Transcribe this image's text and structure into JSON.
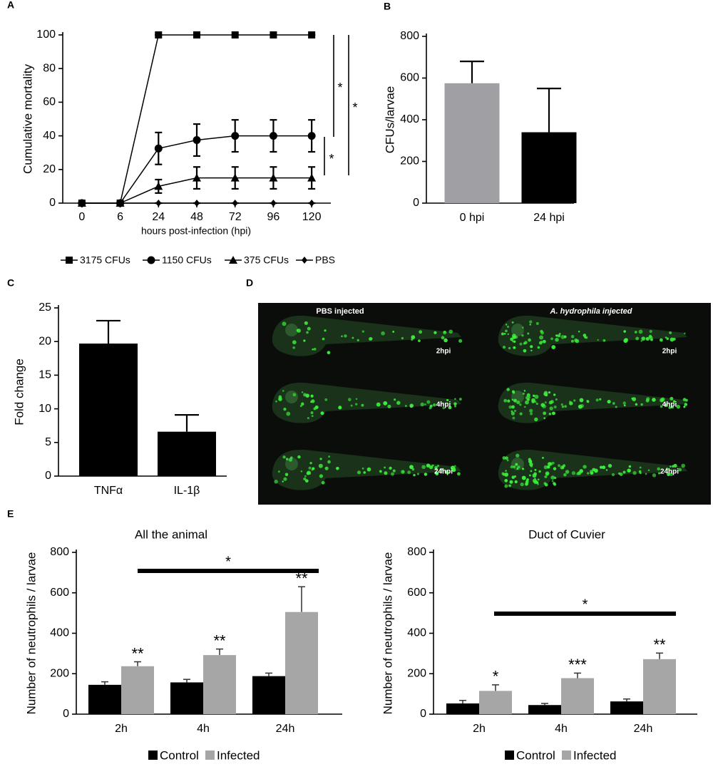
{
  "chart_data": [
    {
      "type": "line",
      "panel_label": "A",
      "x_label": "hours post-infection (hpi)",
      "y_label": "Cumulative mortality",
      "categories": [
        "0",
        "6",
        "24",
        "48",
        "72",
        "96",
        "120"
      ],
      "series": [
        {
          "name": "3175 CFUs",
          "color": "#000000",
          "marker": "square",
          "values": [
            0,
            0,
            100,
            100,
            100,
            100,
            100
          ],
          "errors": [
            0,
            0,
            0,
            0,
            0,
            0,
            0
          ]
        },
        {
          "name": "1150 CFUs",
          "color": "#000000",
          "marker": "circle",
          "values": [
            0,
            0,
            32.5,
            37.5,
            40,
            40,
            40
          ],
          "errors": [
            0,
            0,
            9.5,
            9.5,
            9.5,
            9.5,
            9.5
          ]
        },
        {
          "name": "375 CFUs",
          "color": "#000000",
          "marker": "triangle",
          "values": [
            0,
            0,
            10,
            15,
            15,
            15,
            15
          ],
          "errors": [
            0,
            0,
            4,
            6.5,
            6.5,
            6.5,
            6.5
          ]
        },
        {
          "name": "PBS",
          "color": "#000000",
          "marker": "diamond",
          "values": [
            0,
            0,
            0,
            0,
            0,
            0,
            0
          ],
          "errors": [
            0,
            0,
            0,
            0,
            0,
            0,
            0
          ]
        }
      ],
      "ylim": [
        0,
        100
      ],
      "yticks": [
        0,
        20,
        40,
        60,
        80,
        100
      ],
      "annotations": [
        "*",
        "*",
        "*"
      ]
    },
    {
      "type": "bar",
      "panel_label": "B",
      "y_label": "CFUs/larvae",
      "categories": [
        "0 hpi",
        "24 hpi"
      ],
      "values": [
        575,
        340
      ],
      "errors": [
        105,
        210
      ],
      "colors": [
        "#a0a0a4",
        "#000000"
      ],
      "ylim": [
        0,
        800
      ],
      "yticks": [
        0,
        200,
        400,
        600,
        800
      ]
    },
    {
      "type": "bar",
      "panel_label": "C",
      "y_label": "Fold change",
      "categories": [
        "TNFα",
        "IL-1β"
      ],
      "values": [
        19.7,
        6.6
      ],
      "errors": [
        3.4,
        2.5
      ],
      "colors": [
        "#000000",
        "#000000"
      ],
      "ylim": [
        0,
        25
      ],
      "yticks": [
        0,
        5,
        10,
        15,
        20,
        25
      ]
    },
    {
      "type": "grouped_bar",
      "panel_label": "E",
      "title": "All the animal",
      "y_label": "Number of neutrophils / larvae",
      "categories": [
        "2h",
        "4h",
        "24h"
      ],
      "series": [
        {
          "name": "Control",
          "color": "#000000",
          "values": [
            145,
            157,
            188
          ],
          "errors": [
            15,
            15,
            15
          ]
        },
        {
          "name": "Infected",
          "color": "#a6a6a6",
          "values": [
            237,
            292,
            505
          ],
          "errors": [
            22,
            30,
            125
          ]
        }
      ],
      "annotations": [
        "**",
        "**",
        "**"
      ],
      "bracket_label": "*",
      "ylim": [
        0,
        800
      ],
      "yticks": [
        0,
        200,
        400,
        600,
        800
      ]
    },
    {
      "type": "grouped_bar",
      "title": "Duct of Cuvier",
      "y_label": "Number of neutrophils / larvae",
      "categories": [
        "2h",
        "4h",
        "24h"
      ],
      "series": [
        {
          "name": "Control",
          "color": "#000000",
          "values": [
            53,
            45,
            63
          ],
          "errors": [
            15,
            8,
            12
          ]
        },
        {
          "name": "Infected",
          "color": "#a6a6a6",
          "values": [
            115,
            178,
            272
          ],
          "errors": [
            30,
            25,
            30
          ]
        }
      ],
      "annotations": [
        "*",
        "***",
        "**"
      ],
      "bracket_label": "*",
      "ylim": [
        0,
        800
      ],
      "yticks": [
        0,
        200,
        400,
        600,
        800
      ]
    }
  ],
  "image_panel": {
    "panel_label": "D",
    "column_titles": [
      "PBS injected",
      "A. hydrophila injected"
    ],
    "row_labels": [
      "2hpi",
      "4hpi",
      "24hpi"
    ]
  }
}
